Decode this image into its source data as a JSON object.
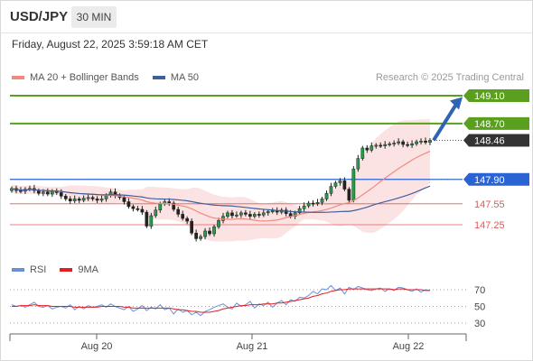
{
  "header": {
    "symbol": "USD/JPY",
    "timeframe": "30 MIN"
  },
  "datetime": "Friday, August 22, 2025 3:59:18 AM CET",
  "legend": {
    "ma20": "MA 20 + Bollinger Bands",
    "ma50": "MA 50"
  },
  "credit": "Research © 2025 Trading Central",
  "rsi_legend": {
    "rsi": "RSI",
    "ma9": "9MA"
  },
  "colors": {
    "ma20": "#f08a80",
    "ma50": "#3e5f9e",
    "green_level": "#5aa01e",
    "blue_level": "#2a63d4",
    "red_level": "#e05a5a",
    "current": "#333333",
    "arrow": "#2e64b4",
    "rsi": "#6b8fd6",
    "rsi_ma": "#e02020",
    "bands": "#fbdcdc"
  },
  "chart_data": {
    "type": "candlestick",
    "x_tick_labels": [
      "Aug 20",
      "Aug 21",
      "Aug 22"
    ],
    "levels": [
      {
        "value": 149.1,
        "label": "149.10",
        "kind": "target"
      },
      {
        "value": 148.7,
        "label": "148.70",
        "kind": "target"
      },
      {
        "value": 148.46,
        "label": "148.46",
        "kind": "current"
      },
      {
        "value": 147.9,
        "label": "147.90",
        "kind": "pivot"
      },
      {
        "value": 147.55,
        "label": "147.55",
        "kind": "support"
      },
      {
        "value": 147.25,
        "label": "147.25",
        "kind": "support"
      }
    ],
    "close": [
      147.77,
      147.74,
      147.73,
      147.76,
      147.77,
      147.74,
      147.7,
      147.72,
      147.69,
      147.73,
      147.71,
      147.66,
      147.62,
      147.59,
      147.62,
      147.6,
      147.63,
      147.64,
      147.62,
      147.6,
      147.62,
      147.67,
      147.72,
      147.67,
      147.64,
      147.58,
      147.51,
      147.48,
      147.47,
      147.43,
      147.23,
      147.38,
      147.46,
      147.55,
      147.58,
      147.56,
      147.47,
      147.4,
      147.34,
      147.3,
      147.13,
      147.05,
      147.08,
      147.16,
      147.12,
      147.22,
      147.31,
      147.37,
      147.42,
      147.38,
      147.39,
      147.42,
      147.4,
      147.37,
      147.4,
      147.39,
      147.42,
      147.44,
      147.45,
      147.43,
      147.46,
      147.41,
      147.37,
      147.42,
      147.48,
      147.52,
      147.56,
      147.55,
      147.57,
      147.62,
      147.7,
      147.8,
      147.85,
      147.88,
      147.76,
      147.6,
      148.05,
      148.2,
      148.35,
      148.32,
      148.38,
      148.39,
      148.38,
      148.4,
      148.41,
      148.42,
      148.44,
      148.4,
      148.39,
      148.41,
      148.44,
      148.45,
      148.43,
      148.46
    ],
    "rsi_axis_ticks": [
      70,
      50,
      30
    ],
    "rsi": [
      52,
      50,
      51,
      49,
      52,
      55,
      50,
      49,
      51,
      47,
      49,
      50,
      48,
      52,
      46,
      50,
      47,
      51,
      49,
      50,
      52,
      49,
      53,
      50,
      48,
      46,
      50,
      44,
      47,
      51,
      45,
      49,
      47,
      52,
      46,
      48,
      41,
      47,
      43,
      45,
      40,
      43,
      39,
      44,
      46,
      49,
      51,
      53,
      49,
      47,
      54,
      50,
      52,
      56,
      48,
      53,
      51,
      55,
      49,
      54,
      57,
      52,
      58,
      56,
      61,
      60,
      63,
      68,
      65,
      71,
      70,
      75,
      69,
      72,
      65,
      73,
      70,
      74,
      72,
      70,
      69,
      71,
      72,
      68,
      71,
      69,
      73,
      72,
      70,
      68,
      71,
      67,
      70,
      69
    ],
    "rsi_ma": [
      50,
      50,
      51,
      51,
      51,
      52,
      51,
      51,
      51,
      50,
      50,
      50,
      50,
      50,
      49,
      49,
      49,
      49,
      49,
      49,
      50,
      50,
      50,
      50,
      50,
      49,
      49,
      48,
      48,
      48,
      48,
      48,
      48,
      48,
      48,
      48,
      47,
      46,
      46,
      45,
      44,
      44,
      43,
      43,
      43,
      44,
      45,
      47,
      48,
      49,
      50,
      51,
      51,
      52,
      52,
      52,
      53,
      53,
      53,
      54,
      54,
      55,
      56,
      57,
      58,
      59,
      60,
      62,
      63,
      65,
      66,
      68,
      69,
      70,
      70,
      71,
      71,
      71,
      71,
      71,
      71,
      71,
      71,
      71,
      71,
      70,
      71,
      71,
      70,
      70,
      70,
      70,
      69,
      69
    ]
  }
}
